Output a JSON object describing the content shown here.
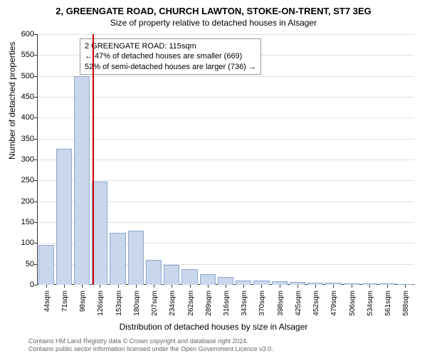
{
  "title": "2, GREENGATE ROAD, CHURCH LAWTON, STOKE-ON-TRENT, ST7 3EG",
  "subtitle": "Size of property relative to detached houses in Alsager",
  "chart": {
    "type": "histogram",
    "ylabel": "Number of detached properties",
    "xlabel": "Distribution of detached houses by size in Alsager",
    "ylim": [
      0,
      600
    ],
    "ytick_step": 50,
    "background_color": "#ffffff",
    "grid_color": "#e0e0e0",
    "bar_fill": "#c9d6ec",
    "bar_stroke": "#8fa8d0",
    "reference_line_color": "#cc0000",
    "reference_value": 115,
    "categories": [
      "44sqm",
      "71sqm",
      "98sqm",
      "126sqm",
      "153sqm",
      "180sqm",
      "207sqm",
      "234sqm",
      "262sqm",
      "289sqm",
      "316sqm",
      "343sqm",
      "370sqm",
      "398sqm",
      "425sqm",
      "452sqm",
      "479sqm",
      "506sqm",
      "534sqm",
      "561sqm",
      "588sqm"
    ],
    "values": [
      95,
      325,
      500,
      248,
      125,
      130,
      60,
      48,
      38,
      25,
      18,
      10,
      10,
      8,
      7,
      5,
      5,
      4,
      3,
      3,
      2
    ],
    "bar_width_ratio": 0.88,
    "label_fontsize": 11,
    "axis_fontsize": 12
  },
  "annotation": {
    "lines": [
      "2 GREENGATE ROAD: 115sqm",
      "← 47% of detached houses are smaller (669)",
      "52% of semi-detached houses are larger (736) →"
    ]
  },
  "footer": {
    "line1": "Contains HM Land Registry data © Crown copyright and database right 2024.",
    "line2": "Contains public sector information licensed under the Open Government Licence v3.0."
  }
}
